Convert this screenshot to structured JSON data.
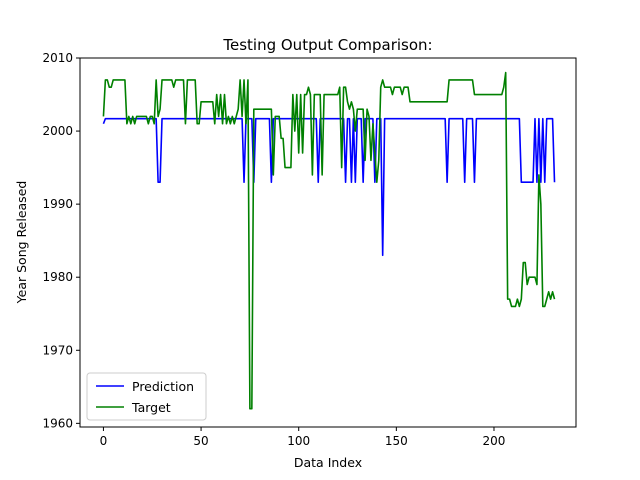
{
  "chart_data": {
    "type": "line",
    "title": "Testing Output Comparison:",
    "xlabel": "Data Index",
    "ylabel": "Year Song Released",
    "xlim": [
      -12,
      242
    ],
    "ylim": [
      1959.5,
      2010
    ],
    "xticks": [
      0,
      50,
      100,
      150,
      200
    ],
    "yticks": [
      1960,
      1970,
      1980,
      1990,
      2000,
      2010
    ],
    "xtick_labels": [
      "0",
      "50",
      "100",
      "150",
      "200"
    ],
    "ytick_labels": [
      "1960",
      "1970",
      "1980",
      "1990",
      "2000",
      "2010"
    ],
    "grid": false,
    "legend": {
      "placement": "lower-left"
    },
    "series": [
      {
        "name": "Prediction",
        "color": "#0000ff",
        "points": [
          [
            0,
            2001
          ],
          [
            1,
            2001.7
          ],
          [
            27,
            2001.7
          ],
          [
            28,
            1993
          ],
          [
            29,
            1993
          ],
          [
            30,
            2001.7
          ],
          [
            71,
            2001.7
          ],
          [
            72,
            1993
          ],
          [
            73,
            2001.7
          ],
          [
            76,
            2001.7
          ],
          [
            77,
            1993
          ],
          [
            78,
            2001.7
          ],
          [
            85,
            2001.7
          ],
          [
            86,
            1993
          ],
          [
            87,
            2001.7
          ],
          [
            109,
            2001.7
          ],
          [
            110,
            1993
          ],
          [
            111,
            2001.7
          ],
          [
            123,
            2001.7
          ],
          [
            124,
            1993
          ],
          [
            125,
            2001.7
          ],
          [
            126,
            2001.7
          ],
          [
            127,
            1993
          ],
          [
            128,
            2001.7
          ],
          [
            129,
            1993
          ],
          [
            130,
            2001.7
          ],
          [
            132,
            2001.7
          ],
          [
            133,
            1993
          ],
          [
            134,
            2001.7
          ],
          [
            138,
            2001.7
          ],
          [
            139,
            1993
          ],
          [
            140,
            2001.7
          ],
          [
            142,
            2001.7
          ],
          [
            143,
            1983
          ],
          [
            144,
            2001.7
          ],
          [
            175,
            2001.7
          ],
          [
            176,
            1993
          ],
          [
            177,
            2001.7
          ],
          [
            184,
            2001.7
          ],
          [
            185,
            1993
          ],
          [
            186,
            2001.7
          ],
          [
            189,
            2001.7
          ],
          [
            190,
            1993
          ],
          [
            191,
            2001.7
          ],
          [
            213,
            2001.7
          ],
          [
            214,
            1993
          ],
          [
            220,
            1993
          ],
          [
            221,
            2001.7
          ],
          [
            222,
            1993
          ],
          [
            223,
            2001.7
          ],
          [
            224,
            1993
          ],
          [
            225,
            2001.7
          ],
          [
            226,
            1993
          ],
          [
            227,
            2001.7
          ],
          [
            230,
            2001.7
          ],
          [
            231,
            1993
          ]
        ]
      },
      {
        "name": "Target",
        "color": "#008000",
        "points": [
          [
            0,
            2002
          ],
          [
            1,
            2007
          ],
          [
            2,
            2007
          ],
          [
            3,
            2006
          ],
          [
            4,
            2006
          ],
          [
            5,
            2007
          ],
          [
            11,
            2007
          ],
          [
            12,
            2001
          ],
          [
            13,
            2002
          ],
          [
            14,
            2001
          ],
          [
            15,
            2002
          ],
          [
            16,
            2001
          ],
          [
            17,
            2002
          ],
          [
            22,
            2002
          ],
          [
            23,
            2001
          ],
          [
            24,
            2002
          ],
          [
            25,
            2002
          ],
          [
            26,
            2001
          ],
          [
            27,
            2007
          ],
          [
            28,
            2002
          ],
          [
            29,
            2003
          ],
          [
            30,
            2007
          ],
          [
            35,
            2007
          ],
          [
            36,
            2006
          ],
          [
            37,
            2007
          ],
          [
            41,
            2007
          ],
          [
            42,
            2001
          ],
          [
            43,
            2007
          ],
          [
            47,
            2007
          ],
          [
            48,
            2001
          ],
          [
            49,
            2001
          ],
          [
            50,
            2004
          ],
          [
            56,
            2004
          ],
          [
            57,
            2001
          ],
          [
            58,
            2005
          ],
          [
            59,
            2002
          ],
          [
            60,
            2005
          ],
          [
            61,
            2001
          ],
          [
            62,
            2005
          ],
          [
            63,
            2001
          ],
          [
            64,
            2002
          ],
          [
            65,
            2001
          ],
          [
            66,
            2002
          ],
          [
            67,
            2001
          ],
          [
            68,
            2002
          ],
          [
            69,
            2003
          ],
          [
            70,
            2007
          ],
          [
            71,
            2002
          ],
          [
            72,
            2007
          ],
          [
            73,
            2001
          ],
          [
            74,
            2007
          ],
          [
            75,
            1962
          ],
          [
            76,
            1962
          ],
          [
            77,
            2003
          ],
          [
            78,
            2003
          ],
          [
            86,
            2003
          ],
          [
            87,
            1994
          ],
          [
            88,
            2002
          ],
          [
            90,
            2002
          ],
          [
            91,
            1999
          ],
          [
            92,
            1999
          ],
          [
            93,
            1995
          ],
          [
            96,
            1995
          ],
          [
            97,
            2005
          ],
          [
            98,
            2000
          ],
          [
            99,
            2005
          ],
          [
            100,
            1997
          ],
          [
            101,
            2005
          ],
          [
            102,
            1997
          ],
          [
            103,
            2005
          ],
          [
            104,
            2005
          ],
          [
            105,
            2006
          ],
          [
            106,
            2005
          ],
          [
            107,
            1994
          ],
          [
            108,
            2005
          ],
          [
            111,
            2005
          ],
          [
            112,
            1994
          ],
          [
            113,
            2005
          ],
          [
            120,
            2005
          ],
          [
            121,
            2006
          ],
          [
            122,
            1995
          ],
          [
            123,
            2006
          ],
          [
            124,
            2006
          ],
          [
            125,
            2004
          ],
          [
            126,
            2003
          ],
          [
            127,
            2004
          ],
          [
            128,
            2003
          ],
          [
            129,
            2000
          ],
          [
            130,
            2003
          ],
          [
            133,
            2003
          ],
          [
            134,
            1996
          ],
          [
            135,
            2003
          ],
          [
            136,
            2002
          ],
          [
            137,
            1996
          ],
          [
            138,
            2001
          ],
          [
            140,
            1993
          ],
          [
            141,
            1996
          ],
          [
            142,
            2006
          ],
          [
            143,
            2007
          ],
          [
            144,
            2006
          ],
          [
            147,
            2006
          ],
          [
            148,
            2005
          ],
          [
            149,
            2006
          ],
          [
            152,
            2006
          ],
          [
            153,
            2005
          ],
          [
            154,
            2006
          ],
          [
            156,
            2006
          ],
          [
            157,
            2004
          ],
          [
            176,
            2004
          ],
          [
            177,
            2007
          ],
          [
            189,
            2007
          ],
          [
            190,
            2005
          ],
          [
            204,
            2005
          ],
          [
            205,
            2006
          ],
          [
            206,
            2008
          ],
          [
            207,
            1977
          ],
          [
            208,
            1977
          ],
          [
            209,
            1976
          ],
          [
            211,
            1976
          ],
          [
            212,
            1977
          ],
          [
            213,
            1976
          ],
          [
            214,
            1977
          ],
          [
            215,
            1982
          ],
          [
            216,
            1982
          ],
          [
            217,
            1979
          ],
          [
            218,
            1980
          ],
          [
            221,
            1980
          ],
          [
            222,
            1979
          ],
          [
            223,
            1994
          ],
          [
            224,
            1990
          ],
          [
            225,
            1976
          ],
          [
            226,
            1976
          ],
          [
            227,
            1977
          ],
          [
            228,
            1978
          ],
          [
            229,
            1977
          ],
          [
            230,
            1978
          ],
          [
            231,
            1977
          ]
        ]
      }
    ]
  }
}
